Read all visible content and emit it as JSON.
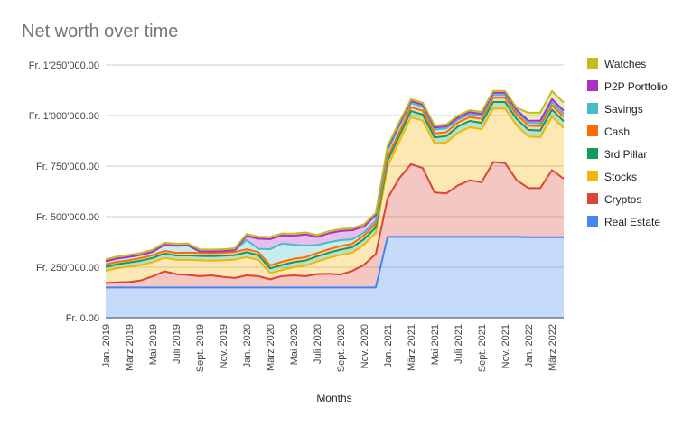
{
  "chart_data": {
    "type": "area",
    "stacked": true,
    "title": "Net worth over time",
    "xlabel": "Months",
    "ylabel": "",
    "ylim": [
      0,
      1250000
    ],
    "yticks": [
      0,
      250000,
      500000,
      750000,
      1000000,
      1250000
    ],
    "ytick_labels": [
      "Fr. 0.00",
      "Fr. 250'000.00",
      "Fr. 500'000.00",
      "Fr. 750'000.00",
      "Fr. 1'000'000.00",
      "Fr. 1'250'000.00"
    ],
    "grid": true,
    "legend_position": "right",
    "x": [
      "Jan. 2019",
      "Feb. 2019",
      "März 2019",
      "Apr. 2019",
      "Mai 2019",
      "Juni 2019",
      "Juli 2019",
      "Aug. 2019",
      "Sept. 2019",
      "Okt. 2019",
      "Nov. 2019",
      "Dez. 2019",
      "Jan. 2020",
      "Feb. 2020",
      "März 2020",
      "Apr. 2020",
      "Mai 2020",
      "Juni 2020",
      "Juli 2020",
      "Aug. 2020",
      "Sept. 2020",
      "Okt. 2020",
      "Nov. 2020",
      "Dez. 2020",
      "Jan. 2021",
      "Feb. 2021",
      "März 2021",
      "Apr. 2021",
      "Mai 2021",
      "Juni 2021",
      "Juli 2021",
      "Aug. 2021",
      "Sept. 2021",
      "Okt. 2021",
      "Nov. 2021",
      "Dez. 2021",
      "Jan. 2022",
      "Feb. 2022",
      "März 2022",
      "Apr. 2022"
    ],
    "x_tick_labels": [
      "Jan. 2019",
      "März 2019",
      "Mai 2019",
      "Juli 2019",
      "Sept. 2019",
      "Nov. 2019",
      "Jan. 2020",
      "März 2020",
      "Mai 2020",
      "Juli 2020",
      "Sept. 2020",
      "Nov. 2020",
      "Jan. 2021",
      "März 2021",
      "Mai 2021",
      "Juli 2021",
      "Sept. 2021",
      "Nov. 2021",
      "Jan. 2022",
      "März 2022"
    ],
    "series": [
      {
        "name": "Real Estate",
        "color": "#4285f4",
        "values": [
          150000,
          150000,
          150000,
          150000,
          150000,
          150000,
          150000,
          150000,
          150000,
          150000,
          150000,
          150000,
          150000,
          150000,
          150000,
          150000,
          150000,
          150000,
          150000,
          150000,
          150000,
          150000,
          150000,
          150000,
          400000,
          400000,
          400000,
          400000,
          400000,
          400000,
          400000,
          400000,
          400000,
          400000,
          400000,
          400000,
          398000,
          398000,
          398000,
          398000
        ]
      },
      {
        "name": "Cryptos",
        "color": "#db4437",
        "values": [
          22000,
          25000,
          27000,
          35000,
          55000,
          80000,
          66000,
          62000,
          56000,
          60000,
          52000,
          47000,
          60000,
          56000,
          40000,
          56000,
          60000,
          56000,
          66000,
          68000,
          64000,
          82000,
          112000,
          165000,
          190000,
          290000,
          360000,
          340000,
          220000,
          215000,
          255000,
          280000,
          270000,
          370000,
          365000,
          280000,
          243000,
          243000,
          332000,
          290000
        ]
      },
      {
        "name": "Stocks",
        "color": "#f4b400",
        "values": [
          60000,
          70000,
          76000,
          76000,
          70000,
          66000,
          70000,
          74000,
          78000,
          72000,
          82000,
          90000,
          90000,
          80000,
          30000,
          30000,
          40000,
          52000,
          62000,
          78000,
          97000,
          90000,
          100000,
          105000,
          158000,
          182000,
          232000,
          235000,
          242000,
          252000,
          260000,
          262000,
          262000,
          265000,
          270000,
          270000,
          255000,
          252000,
          265000,
          250000
        ]
      },
      {
        "name": "3rd Pillar",
        "color": "#0f9d58",
        "values": [
          20000,
          20000,
          20000,
          21000,
          21000,
          22000,
          22000,
          22000,
          22000,
          23000,
          23000,
          23000,
          24000,
          24000,
          24000,
          25000,
          25000,
          25000,
          26000,
          26000,
          26000,
          27000,
          27000,
          27000,
          28000,
          28000,
          30000,
          30000,
          30000,
          31000,
          31000,
          31000,
          32000,
          32000,
          32000,
          33000,
          33000,
          33000,
          34000,
          34000
        ]
      },
      {
        "name": "Cash",
        "color": "#ff6d01",
        "values": [
          12000,
          12000,
          12000,
          13000,
          13000,
          13000,
          13000,
          14000,
          14000,
          14000,
          14000,
          15000,
          15000,
          15000,
          15000,
          16000,
          16000,
          16000,
          16000,
          17000,
          17000,
          17000,
          18000,
          18000,
          18000,
          18000,
          19000,
          19000,
          19000,
          20000,
          20000,
          20000,
          20000,
          21000,
          21000,
          21000,
          21000,
          22000,
          22000,
          22000
        ]
      },
      {
        "name": "Savings",
        "color": "#46bdc6",
        "values": [
          15000,
          16000,
          16000,
          16000,
          17000,
          30000,
          35000,
          36000,
          8000,
          8000,
          8000,
          9000,
          45000,
          16000,
          80000,
          90000,
          70000,
          58000,
          40000,
          34000,
          30000,
          22000,
          15000,
          14000,
          30000,
          30000,
          20000,
          20000,
          20000,
          18000,
          14000,
          14000,
          14000,
          14000,
          14000,
          14000,
          14000,
          14000,
          15000,
          15000
        ]
      },
      {
        "name": "P2P Portfolio",
        "color": "#ab30c4",
        "values": [
          0,
          0,
          0,
          0,
          0,
          0,
          0,
          0,
          0,
          0,
          0,
          0,
          20000,
          50000,
          50000,
          40000,
          45000,
          55000,
          40000,
          45000,
          45000,
          45000,
          30000,
          30000,
          15000,
          10000,
          10000,
          10000,
          10000,
          10000,
          10000,
          10000,
          10000,
          10000,
          10000,
          10000,
          10000,
          12000,
          15000,
          15000
        ]
      },
      {
        "name": "Watches",
        "color": "#c2bc1f",
        "values": [
          10000,
          10000,
          10000,
          10000,
          10000,
          10000,
          10000,
          10000,
          10000,
          10000,
          10000,
          10000,
          10000,
          10000,
          10000,
          10000,
          10000,
          10000,
          10000,
          10000,
          10000,
          10000,
          10000,
          10000,
          10000,
          10000,
          10000,
          10000,
          10000,
          10000,
          10000,
          10000,
          10000,
          10000,
          10000,
          10000,
          40000,
          40000,
          40000,
          40000
        ]
      }
    ]
  }
}
